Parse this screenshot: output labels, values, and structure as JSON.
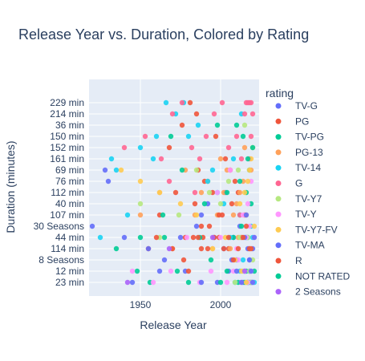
{
  "chart_data": {
    "type": "scatter",
    "title": "Release Year vs. Duration, Colored by Rating",
    "xlabel": "Release Year",
    "ylabel": "Duration (minutes)",
    "xlim": [
      1918,
      2024
    ],
    "x_ticks": [
      1950,
      2000
    ],
    "y_categories": [
      "23 min",
      "12 min",
      "8 Seasons",
      "114 min",
      "44 min",
      "30 Seasons",
      "107 min",
      "40 min",
      "112 min",
      "76 min",
      "69 min",
      "161 min",
      "152 min",
      "150 min",
      "36 min",
      "214 min",
      "229 min"
    ],
    "grid": true,
    "legend": {
      "title": "rating",
      "placement": "right"
    },
    "series": [
      {
        "name": "TV-G",
        "color": "#636efa",
        "x": [
          1945,
          1962,
          1975,
          1988,
          1998,
          2005,
          2010,
          2014,
          2016,
          2018,
          2019,
          2020,
          2012,
          1992,
          2003,
          2017,
          2015,
          2008,
          2018,
          2019
        ],
        "y": [
          "23 min",
          "12 min",
          "44 min",
          "107 min",
          "23 min",
          "12 min",
          "8 Seasons",
          "23 min",
          "44 min",
          "12 min",
          "23 min",
          "114 min",
          "30 Seasons",
          "40 min",
          "112 min",
          "23 min",
          "12 min",
          "44 min",
          "8 Seasons",
          "23 min"
        ]
      },
      {
        "name": "PG",
        "color": "#ef553b",
        "x": [
          1955,
          1962,
          1968,
          1972,
          1978,
          1981,
          1984,
          1986,
          1988,
          1990,
          1993,
          1995,
          1997,
          1999,
          2001,
          2003,
          2005,
          2007,
          2009,
          2011,
          2013,
          2015,
          2017,
          2019,
          1985,
          1976,
          1989,
          2006
        ],
        "y": [
          "114 min",
          "107 min",
          "152 min",
          "112 min",
          "44 min",
          "229 min",
          "40 min",
          "69 min",
          "114 min",
          "76 min",
          "30 Seasons",
          "112 min",
          "150 min",
          "44 min",
          "107 min",
          "161 min",
          "114 min",
          "40 min",
          "76 min",
          "112 min",
          "44 min",
          "107 min",
          "23 min",
          "114 min",
          "214 min",
          "36 min",
          "44 min",
          "69 min"
        ]
      },
      {
        "name": "TV-PG",
        "color": "#00cc96",
        "x": [
          1948,
          1956,
          1965,
          1973,
          1980,
          1987,
          1994,
          2000,
          2004,
          2008,
          2011,
          2013,
          2015,
          2016,
          2017,
          2018,
          2019,
          2020,
          2021,
          2010,
          2014,
          2012,
          2018,
          2016
        ],
        "y": [
          "12 min",
          "23 min",
          "44 min",
          "12 min",
          "23 min",
          "44 min",
          "8 Seasons",
          "23 min",
          "12 min",
          "44 min",
          "23 min",
          "30 Seasons",
          "23 min",
          "12 min",
          "44 min",
          "23 min",
          "40 min",
          "23 min",
          "12 min",
          "36 min",
          "150 min",
          "107 min",
          "69 min",
          "112 min"
        ]
      },
      {
        "name": "PG-13",
        "color": "#ffa15a",
        "x": [
          1950,
          1962,
          1970,
          1978,
          1984,
          1988,
          1992,
          1995,
          1998,
          2000,
          2002,
          2004,
          2006,
          2008,
          2010,
          2012,
          2014,
          2016,
          2018,
          2019,
          2015,
          2011
        ],
        "y": [
          "107 min",
          "112 min",
          "114 min",
          "69 min",
          "107 min",
          "112 min",
          "76 min",
          "114 min",
          "107 min",
          "161 min",
          "112 min",
          "69 min",
          "114 min",
          "107 min",
          "40 min",
          "112 min",
          "76 min",
          "107 min",
          "114 min",
          "69 min",
          "152 min",
          "44 min"
        ]
      },
      {
        "name": "TV-14",
        "color": "#19d3f3",
        "x": [
          1925,
          1935,
          1942,
          1950,
          1958,
          1966,
          1972,
          1980,
          1986,
          1992,
          1998,
          2002,
          2006,
          2009,
          2012,
          2014,
          2016,
          2017,
          2018,
          2019,
          2020,
          2021,
          1932,
          1960,
          1977,
          1995,
          2008,
          2013
        ],
        "y": [
          "44 min",
          "69 min",
          "107 min",
          "152 min",
          "161 min",
          "229 min",
          "214 min",
          "150 min",
          "36 min",
          "76 min",
          "112 min",
          "40 min",
          "44 min",
          "23 min",
          "12 min",
          "8 Seasons",
          "44 min",
          "23 min",
          "12 min",
          "30 Seasons",
          "44 min",
          "23 min",
          "161 min",
          "150 min",
          "229 min",
          "69 min",
          "161 min",
          "214 min"
        ]
      },
      {
        "name": "G",
        "color": "#ff6692",
        "x": [
          1940,
          1953,
          1963,
          1970,
          1976,
          1982,
          1987,
          1991,
          1996,
          2001,
          2005,
          2010,
          2013,
          2015,
          2016,
          2017,
          2018,
          2019,
          2020,
          1968,
          1984,
          2012,
          2018,
          2019
        ],
        "y": [
          "152 min",
          "150 min",
          "161 min",
          "214 min",
          "229 min",
          "152 min",
          "161 min",
          "150 min",
          "214 min",
          "229 min",
          "152 min",
          "150 min",
          "161 min",
          "214 min",
          "229 min",
          "229 min",
          "229 min",
          "229 min",
          "214 min",
          "76 min",
          "112 min",
          "107 min",
          "161 min",
          "150 min"
        ]
      },
      {
        "name": "TV-Y7",
        "color": "#b6e880",
        "x": [
          1950,
          1962,
          1974,
          1985,
          1993,
          2000,
          2005,
          2009,
          2012,
          2014,
          2016,
          2017,
          2018,
          2019,
          2020,
          2011,
          2015
        ],
        "y": [
          "40 min",
          "44 min",
          "107 min",
          "69 min",
          "112 min",
          "40 min",
          "76 min",
          "23 min",
          "44 min",
          "12 min",
          "23 min",
          "44 min",
          "12 min",
          "23 min",
          "8 Seasons",
          "69 min",
          "36 min"
        ]
      },
      {
        "name": "TV-Y",
        "color": "#ff97ff",
        "x": [
          1945,
          1958,
          1969,
          1979,
          1987,
          1994,
          2000,
          2004,
          2008,
          2011,
          2013,
          2015,
          2016,
          2017,
          2018,
          2019,
          2020,
          2021,
          2010,
          2014,
          2017,
          2019,
          2006,
          1998
        ],
        "y": [
          "12 min",
          "23 min",
          "12 min",
          "44 min",
          "23 min",
          "12 min",
          "44 min",
          "23 min",
          "12 min",
          "8 Seasons",
          "23 min",
          "12 min",
          "44 min",
          "23 min",
          "30 Seasons",
          "12 min",
          "23 min",
          "44 min",
          "114 min",
          "107 min",
          "40 min",
          "76 min",
          "69 min",
          "112 min"
        ]
      },
      {
        "name": "TV-Y7-FV",
        "color": "#fecb52",
        "x": [
          1938,
          1950,
          1962,
          1975,
          1985,
          1995,
          2003,
          2009,
          2013,
          2016,
          2018,
          2019,
          2020,
          2021,
          2012,
          2017,
          2015
        ],
        "y": [
          "69 min",
          "76 min",
          "112 min",
          "40 min",
          "107 min",
          "114 min",
          "44 min",
          "8 Seasons",
          "12 min",
          "23 min",
          "69 min",
          "161 min",
          "152 min",
          "30 Seasons",
          "40 min",
          "76 min",
          "112 min"
        ]
      },
      {
        "name": "TV-MA",
        "color": "#636efa",
        "x": [
          1920,
          1928,
          1940,
          1955,
          1965,
          1978,
          1988,
          1996,
          2002,
          2007,
          2010,
          2013,
          2015,
          2017,
          2018,
          2019,
          2020,
          2021,
          1930,
          1985,
          2016
        ],
        "y": [
          "30 Seasons",
          "69 min",
          "44 min",
          "114 min",
          "8 Seasons",
          "12 min",
          "23 min",
          "44 min",
          "114 min",
          "8 Seasons",
          "12 min",
          "23 min",
          "44 min",
          "114 min",
          "8 Seasons",
          "12 min",
          "23 min",
          "44 min",
          "76 min",
          "30 Seasons",
          "107 min"
        ]
      },
      {
        "name": "R",
        "color": "#ef553b",
        "x": [
          1960,
          1970,
          1977,
          1983,
          1988,
          1992,
          1996,
          1999,
          2002,
          2005,
          2008,
          2011,
          2014,
          2016,
          2018,
          1980,
          1986
        ],
        "y": [
          "44 min",
          "114 min",
          "8 Seasons",
          "44 min",
          "30 Seasons",
          "114 min",
          "44 min",
          "107 min",
          "114 min",
          "44 min",
          "8 Seasons",
          "114 min",
          "44 min",
          "30 Seasons",
          "114 min",
          "12 min",
          "44 min"
        ]
      },
      {
        "name": "NOT RATED",
        "color": "#00cc96",
        "x": [
          1935,
          1950,
          1964,
          1976,
          1990,
          2004,
          2012,
          2017,
          2020,
          1969,
          1998
        ],
        "y": [
          "114 min",
          "44 min",
          "107 min",
          "69 min",
          "40 min",
          "112 min",
          "76 min",
          "161 min",
          "152 min",
          "150 min",
          "36 min"
        ]
      },
      {
        "name": "2 Seasons",
        "color": "#ab63fa",
        "x": [
          1942,
          1968,
          1995,
          2015
        ],
        "y": [
          "23 min",
          "114 min",
          "44 min",
          "12 min"
        ]
      }
    ]
  }
}
